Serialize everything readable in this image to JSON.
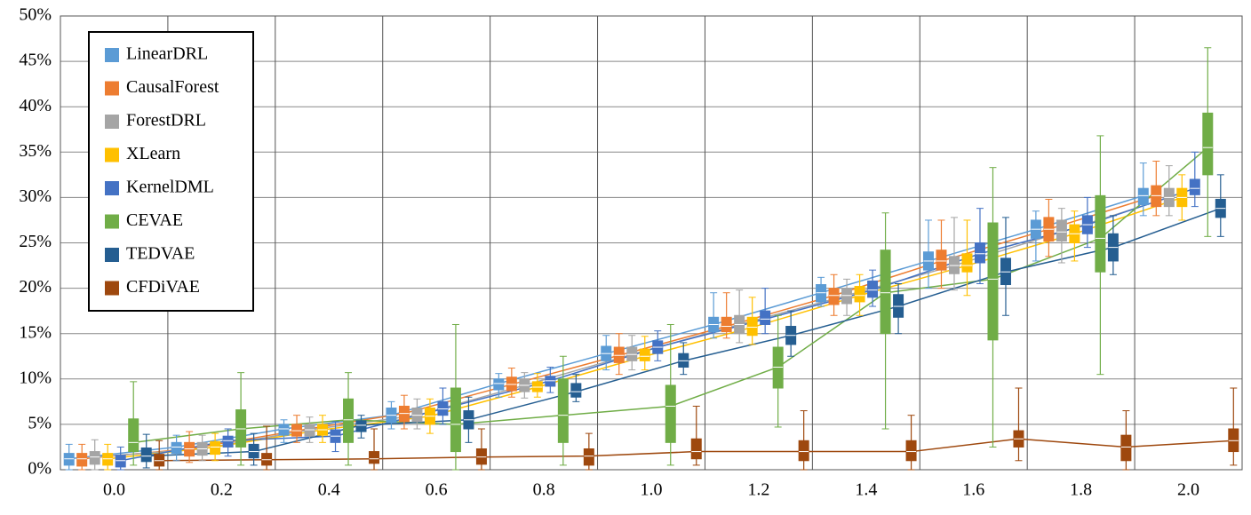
{
  "chart_data": {
    "type": "box",
    "categories": [
      "0.0",
      "0.2",
      "0.4",
      "0.6",
      "0.8",
      "1.0",
      "1.2",
      "1.4",
      "1.6",
      "1.8",
      "2.0"
    ],
    "ylim": [
      0,
      50
    ],
    "yticks": [
      {
        "value": 0,
        "label": "0%"
      },
      {
        "value": 5,
        "label": "5%"
      },
      {
        "value": 10,
        "label": "10%"
      },
      {
        "value": 15,
        "label": "15%"
      },
      {
        "value": 20,
        "label": "20%"
      },
      {
        "value": 25,
        "label": "25%"
      },
      {
        "value": 30,
        "label": "30%"
      },
      {
        "value": 35,
        "label": "35%"
      },
      {
        "value": 40,
        "label": "40%"
      },
      {
        "value": 45,
        "label": "45%"
      },
      {
        "value": 50,
        "label": "50%"
      }
    ],
    "grid": true,
    "legend": "upper left",
    "series": [
      {
        "name": "LinearDRL",
        "color": "#5b9bd5",
        "values": [
          [
            0,
            0.5,
            1.2,
            1.8,
            2.8
          ],
          [
            1,
            1.8,
            2.5,
            3,
            3.8
          ],
          [
            3,
            3.8,
            4.5,
            5,
            5.5
          ],
          [
            4.5,
            5.2,
            6,
            6.8,
            7.5
          ],
          [
            8,
            8.8,
            9.5,
            10,
            10.6
          ],
          [
            11,
            12,
            12.8,
            13.6,
            14.8
          ],
          [
            14.5,
            15.2,
            16,
            16.8,
            19.5
          ],
          [
            18,
            18.5,
            19.5,
            20.4,
            21.2
          ],
          [
            20,
            22,
            23,
            24,
            27.5
          ],
          [
            23,
            25.5,
            26.5,
            27.5,
            28.5
          ],
          [
            28,
            29.2,
            30.2,
            31,
            33.8
          ]
        ]
      },
      {
        "name": "CausalForest",
        "color": "#ed7d31",
        "values": [
          [
            0,
            0.4,
            1.2,
            1.8,
            2.8
          ],
          [
            0.8,
            1.5,
            2.3,
            3,
            4.2
          ],
          [
            3,
            3.7,
            4.3,
            5,
            6
          ],
          [
            4.5,
            5.3,
            6.2,
            7,
            8.2
          ],
          [
            8,
            8.7,
            9.4,
            10.2,
            11.2
          ],
          [
            10.5,
            11.8,
            12.6,
            13.5,
            15
          ],
          [
            14.5,
            15.2,
            15.8,
            16.8,
            19.5
          ],
          [
            17,
            18.2,
            19.2,
            20,
            21.5
          ],
          [
            20,
            22,
            23,
            24.2,
            27.5
          ],
          [
            23.5,
            25.2,
            26.5,
            27.8,
            29.8
          ],
          [
            28,
            29,
            30.2,
            31.3,
            34
          ]
        ]
      },
      {
        "name": "ForestDRL",
        "color": "#a5a5a5",
        "values": [
          [
            0,
            0.6,
            1.4,
            2,
            3.3
          ],
          [
            1,
            1.6,
            2.3,
            3,
            3.8
          ],
          [
            3,
            3.7,
            4.4,
            5,
            5.8
          ],
          [
            4.5,
            5.3,
            6,
            6.8,
            7.8
          ],
          [
            7.9,
            8.6,
            9.3,
            10,
            10.7
          ],
          [
            11,
            12,
            12.7,
            13.5,
            14.8
          ],
          [
            14,
            15,
            16,
            17,
            19.8
          ],
          [
            17,
            18.3,
            19.2,
            20,
            21
          ],
          [
            19.8,
            21.6,
            22.5,
            23.5,
            27.8
          ],
          [
            22.8,
            25.2,
            26.2,
            27.5,
            28.8
          ],
          [
            28,
            29,
            30,
            31,
            33.5
          ]
        ]
      },
      {
        "name": "XLearn",
        "color": "#ffc000",
        "values": [
          [
            0,
            0.5,
            1.2,
            1.8,
            2.8
          ],
          [
            1,
            1.7,
            2.5,
            3.1,
            4
          ],
          [
            3,
            3.8,
            4.4,
            5,
            6
          ],
          [
            4,
            5,
            5.9,
            6.8,
            7.8
          ],
          [
            8,
            8.6,
            9.1,
            9.7,
            10.6
          ],
          [
            11,
            12,
            12.5,
            13.3,
            14.7
          ],
          [
            13.8,
            14.8,
            15.7,
            16.8,
            19
          ],
          [
            17,
            18.5,
            19.2,
            20.2,
            21.5
          ],
          [
            19.2,
            21.8,
            22.5,
            23.8,
            27.5
          ],
          [
            23,
            25,
            26,
            27,
            28.5
          ],
          [
            27.5,
            29,
            30,
            31,
            32.5
          ]
        ]
      },
      {
        "name": "KernelDML",
        "color": "#4472c4",
        "values": [
          [
            0,
            0.3,
            1,
            1.6,
            2.5
          ],
          [
            1.5,
            2.5,
            3.2,
            3.7,
            4.5
          ],
          [
            2,
            3,
            3.7,
            4.4,
            5.3
          ],
          [
            5,
            6,
            6.7,
            7.5,
            9
          ],
          [
            8.5,
            9.2,
            9.8,
            10.3,
            11.3
          ],
          [
            12,
            12.8,
            13.5,
            14.2,
            15.3
          ],
          [
            15,
            16,
            16.6,
            17.5,
            20
          ],
          [
            18,
            19,
            19.8,
            20.8,
            22
          ],
          [
            20.5,
            22.8,
            23.8,
            25,
            28.8
          ],
          [
            24.5,
            26,
            27,
            28,
            30
          ],
          [
            29,
            30.3,
            31,
            32,
            35
          ]
        ]
      },
      {
        "name": "CEVAE",
        "color": "#70ad47",
        "values": [
          [
            0.5,
            2,
            3,
            5.6,
            9.7
          ],
          [
            0.5,
            2.5,
            4.5,
            6.6,
            10.7
          ],
          [
            0.5,
            3,
            5.5,
            7.8,
            10.7
          ],
          [
            0,
            2,
            5,
            9,
            16
          ],
          [
            0.5,
            3,
            6,
            10,
            12.5
          ],
          [
            0.5,
            3,
            7,
            9.3,
            16
          ],
          [
            4.7,
            9,
            11.3,
            13.5,
            17
          ],
          [
            4.5,
            15,
            19.5,
            24.2,
            28.3
          ],
          [
            2.5,
            14.3,
            21,
            27.2,
            33.3
          ],
          [
            10.5,
            21.8,
            25.5,
            30.2,
            36.8
          ],
          [
            25.7,
            32.5,
            35.5,
            39.3,
            46.5
          ]
        ]
      },
      {
        "name": "TEDVAE",
        "color": "#255e91",
        "values": [
          [
            0.2,
            0.9,
            1.5,
            2.4,
            3.9
          ],
          [
            0.5,
            1.3,
            2,
            2.8,
            4
          ],
          [
            3.5,
            4.2,
            4.9,
            5.4,
            6
          ],
          [
            3,
            4.5,
            5.5,
            6.5,
            8
          ],
          [
            7.5,
            8,
            8.6,
            9.5,
            10.5
          ],
          [
            10.5,
            11.3,
            12,
            12.8,
            14
          ],
          [
            12.5,
            13.8,
            14.8,
            15.8,
            17.5
          ],
          [
            15,
            16.8,
            18,
            19.3,
            20.5
          ],
          [
            17,
            20.4,
            21.8,
            23.3,
            27.8
          ],
          [
            21.5,
            23,
            24.5,
            26,
            28
          ],
          [
            25.7,
            27.8,
            28.8,
            29.8,
            32.5
          ]
        ]
      },
      {
        "name": "CFDiVAE",
        "color": "#9e480e",
        "values": [
          [
            0,
            0.4,
            1,
            1.7,
            3.2
          ],
          [
            0,
            0.5,
            1.1,
            1.8,
            4.8
          ],
          [
            0,
            0.7,
            1.2,
            2,
            4.5
          ],
          [
            0,
            0.6,
            1.4,
            2.3,
            4.5
          ],
          [
            0,
            0.5,
            1.5,
            2.3,
            4
          ],
          [
            0.5,
            1.2,
            2,
            3.4,
            7
          ],
          [
            0,
            1,
            2,
            3.2,
            6.5
          ],
          [
            0,
            1,
            2,
            3.2,
            6
          ],
          [
            1,
            2.5,
            3.4,
            4.3,
            9
          ],
          [
            0,
            1,
            2.5,
            3.8,
            6.5
          ],
          [
            0.5,
            2,
            3.2,
            4.5,
            9
          ]
        ]
      }
    ]
  }
}
